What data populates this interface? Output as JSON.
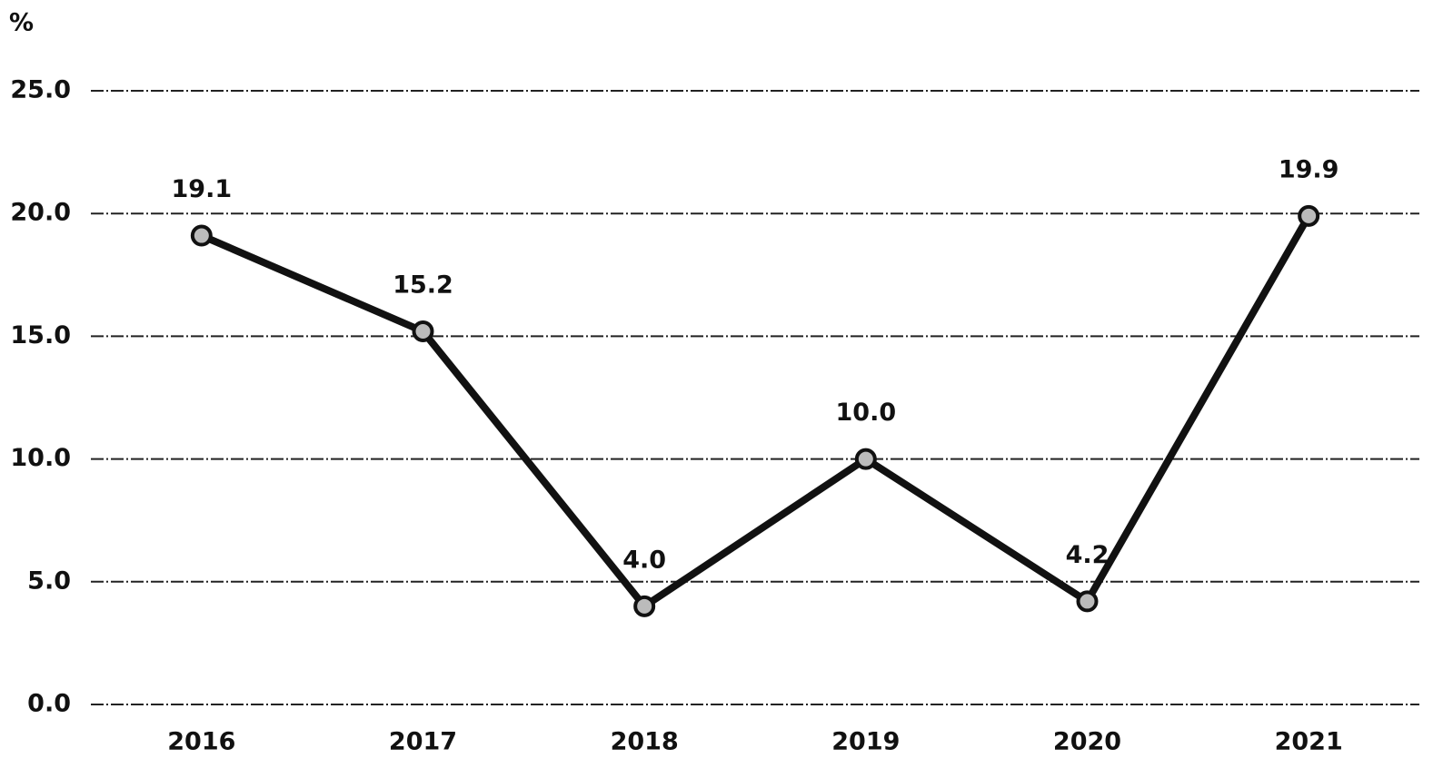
{
  "chart_data": {
    "type": "line",
    "y_label": "%",
    "categories": [
      "2016",
      "2017",
      "2018",
      "2019",
      "2020",
      "2021"
    ],
    "values": [
      19.1,
      15.2,
      4.0,
      10.0,
      4.2,
      19.9
    ],
    "value_labels": [
      "19.1",
      "15.2",
      "4.0",
      "10.0",
      "4.2",
      "19.9"
    ],
    "color": "#111111",
    "ylim": [
      0,
      25
    ],
    "yticks": [
      {
        "value": 0,
        "label": "0.0"
      },
      {
        "value": 5,
        "label": "5.0"
      },
      {
        "value": 10,
        "label": "10.0"
      },
      {
        "value": 15,
        "label": "15.0"
      },
      {
        "value": 20,
        "label": "20.0"
      },
      {
        "value": 25,
        "label": "25.0"
      }
    ],
    "grid": true
  }
}
